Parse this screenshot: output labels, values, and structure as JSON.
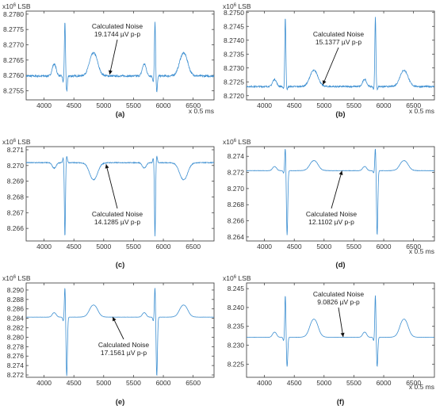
{
  "chart_data": [
    {
      "type": "line",
      "label": "(a)",
      "y_unit_base": "x10",
      "y_unit_exp": "6",
      "y_unit_suffix": "LSB",
      "xlabel": "x 0.5 ms",
      "xlim": [
        3700,
        6850
      ],
      "ylim": [
        8.2752,
        8.2781
      ],
      "xticks": [
        4000,
        4500,
        5000,
        5500,
        6000,
        6500
      ],
      "yticks": [
        "8.2755",
        "8.2760",
        "8.2765",
        "8.2770",
        "8.2775",
        "8.2780"
      ],
      "annotation": {
        "line1": "Calculated Noise",
        "line2": "19.1744 µV p-p",
        "arrow_to": [
          5100,
          8.27603
        ]
      },
      "signal": {
        "baseline": 8.27598,
        "p_amp": 0.00045,
        "t_amp": 0.0009,
        "r_amp": 0.00178,
        "q_amp": 0.0002,
        "s_amp": 0.0005,
        "polarity": 1,
        "noise": 6e-05
      }
    },
    {
      "type": "line",
      "label": "(b)",
      "y_unit_base": "x10",
      "y_unit_exp": "6",
      "y_unit_suffix": "LSB",
      "xlabel": "x 0.5 ms",
      "xlim": [
        3700,
        6850
      ],
      "ylim": [
        8.27185,
        8.27505
      ],
      "xticks": [
        4000,
        4500,
        5000,
        5500,
        6000,
        6500
      ],
      "yticks": [
        "8.2720",
        "8.2725",
        "8.2730",
        "8.2735",
        "8.2740",
        "8.2745",
        "8.2750"
      ],
      "annotation": {
        "line1": "Calculated Noise",
        "line2": "15.1377 µV p-p",
        "arrow_to": [
          4980,
          8.2724
        ]
      },
      "signal": {
        "baseline": 8.27233,
        "p_amp": 0.0003,
        "t_amp": 0.0007,
        "r_amp": 0.0025,
        "q_amp": 0.0001,
        "s_amp": 0.0001,
        "polarity": 1,
        "noise": 5e-05
      }
    },
    {
      "type": "line",
      "label": "(c)",
      "y_unit_base": "x10",
      "y_unit_exp": "6",
      "y_unit_suffix": "LSB",
      "xlabel": "",
      "xlim": [
        3700,
        6850
      ],
      "ylim": [
        8.2652,
        8.2712
      ],
      "xticks": [
        4000,
        4500,
        5000,
        5500,
        6000,
        6500
      ],
      "yticks": [
        "8.266",
        "8.267",
        "8.268",
        "8.269",
        "8.270",
        "8.271"
      ],
      "annotation": {
        "line1": "Calculated Noise",
        "line2": "14.1285 µV p-p",
        "arrow_to": [
          5040,
          8.27008
        ]
      },
      "signal": {
        "baseline": 8.27018,
        "p_amp": 0.0004,
        "t_amp": 0.0013,
        "r_amp": 0.0047,
        "q_amp": 0.0003,
        "s_amp": 0.0004,
        "polarity": -1,
        "noise": 5e-05
      }
    },
    {
      "type": "line",
      "label": "(d)",
      "y_unit_base": "x10",
      "y_unit_exp": "6",
      "y_unit_suffix": "LSB",
      "xlabel": "x 0.5 ms",
      "xlim": [
        3700,
        6850
      ],
      "ylim": [
        8.2635,
        8.2752
      ],
      "xticks": [
        4000,
        4500,
        5000,
        5500,
        6000,
        6500
      ],
      "yticks": [
        "8.264",
        "8.266",
        "8.268",
        "8.270",
        "8.272",
        "8.274"
      ],
      "annotation": {
        "line1": "Calculated Noise",
        "line2": "12.1102 µV p-p",
        "arrow_to": [
          5300,
          8.2722
        ]
      },
      "signal": {
        "baseline": 8.27222,
        "p_amp": 0.0006,
        "t_amp": 0.0015,
        "r_amp": 0.0029,
        "q_amp": 0.0003,
        "s_amp": 0.008,
        "polarity": 1,
        "noise": 4e-05
      }
    },
    {
      "type": "line",
      "label": "(e)",
      "y_unit_base": "x10",
      "y_unit_exp": "6",
      "y_unit_suffix": "LSB",
      "xlabel": "",
      "xlim": [
        3700,
        6850
      ],
      "ylim": [
        8.2715,
        8.2915
      ],
      "xticks": [
        4000,
        4500,
        5000,
        5500,
        6000,
        6500
      ],
      "yticks": [
        "8.272",
        "8.274",
        "8.276",
        "8.278",
        "8.280",
        "8.282",
        "8.284",
        "8.286",
        "8.288",
        "8.290"
      ],
      "annotation": {
        "line1": "Calculated Noise",
        "line2": "17.1561 µV p-p",
        "arrow_to": [
          5150,
          8.2843
        ]
      },
      "signal": {
        "baseline": 8.28425,
        "p_amp": 0.0011,
        "t_amp": 0.0031,
        "r_amp": 0.0065,
        "q_amp": 0.0008,
        "s_amp": 0.0125,
        "polarity": 1,
        "noise": 3e-05
      }
    },
    {
      "type": "line",
      "label": "(f)",
      "y_unit_base": "x10",
      "y_unit_exp": "6",
      "y_unit_suffix": "LSB",
      "xlabel": "x 0.5 ms",
      "xlim": [
        3700,
        6850
      ],
      "ylim": [
        8.2215,
        8.2465
      ],
      "xticks": [
        4000,
        4500,
        5000,
        5500,
        6000,
        6500
      ],
      "yticks": [
        "8.225",
        "8.230",
        "8.235",
        "8.240",
        "8.245"
      ],
      "annotation": {
        "line1": "Calculated Noise",
        "line2": "9.0826 µV p-p",
        "arrow_to": [
          5320,
          8.2322
        ]
      },
      "signal": {
        "baseline": 8.2321,
        "p_amp": 0.0016,
        "t_amp": 0.0058,
        "r_amp": 0.0113,
        "q_amp": 0.0009,
        "s_amp": 0.0078,
        "polarity": 1,
        "noise": 3e-05
      }
    }
  ]
}
